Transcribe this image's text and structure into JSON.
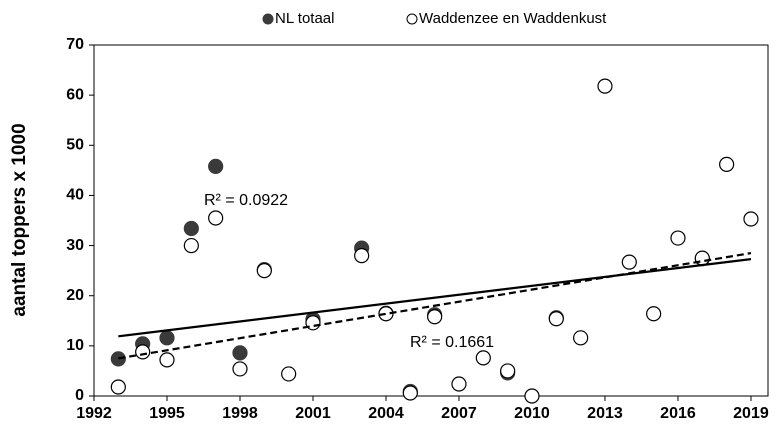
{
  "chart_data": {
    "type": "scatter",
    "ylabel": "aantal toppers x 1000",
    "xlim": [
      1992,
      2019.7
    ],
    "xticks": [
      1992,
      1995,
      1998,
      2001,
      2004,
      2007,
      2010,
      2013,
      2016,
      2019
    ],
    "ylim": [
      0,
      70
    ],
    "yticks": [
      0,
      10,
      20,
      30,
      40,
      50,
      60,
      70
    ],
    "series": [
      {
        "name": "NL totaal",
        "color": "#3a3a3a",
        "filled": true,
        "x": [
          1993,
          1994,
          1995,
          1996,
          1997,
          1998,
          1999,
          2001,
          2003,
          2004,
          2005,
          2006,
          2009,
          2011,
          2017
        ],
        "values": [
          7.4,
          10.4,
          11.6,
          33.4,
          45.8,
          8.6,
          25.2,
          15.3,
          29.5,
          16.5,
          0.9,
          16.2,
          4.6,
          15.6,
          27.4
        ],
        "trend": {
          "style": "solid",
          "x": [
            1993,
            2019
          ],
          "values": [
            11.9,
            27.3
          ]
        }
      },
      {
        "name": "Waddenzee en Waddenkust",
        "color": "#000000",
        "filled": false,
        "x": [
          1993,
          1994,
          1995,
          1996,
          1997,
          1998,
          1999,
          2000,
          2001,
          2003,
          2004,
          2005,
          2006,
          2007,
          2008,
          2009,
          2010,
          2011,
          2012,
          2013,
          2014,
          2015,
          2016,
          2017,
          2018,
          2019
        ],
        "values": [
          1.8,
          8.8,
          7.2,
          30,
          35.5,
          5.4,
          25,
          4.4,
          14.6,
          28,
          16.4,
          0.6,
          15.8,
          2.4,
          7.6,
          5,
          0,
          15.4,
          11.6,
          61.8,
          26.7,
          16.4,
          31.5,
          27.5,
          46.2,
          35.3
        ],
        "trend": {
          "style": "dashed",
          "x": [
            1993,
            2019
          ],
          "values": [
            7.5,
            28.5
          ]
        }
      }
    ],
    "annotations": [
      "R² = 0.0922",
      "R² = 0.1661"
    ]
  }
}
